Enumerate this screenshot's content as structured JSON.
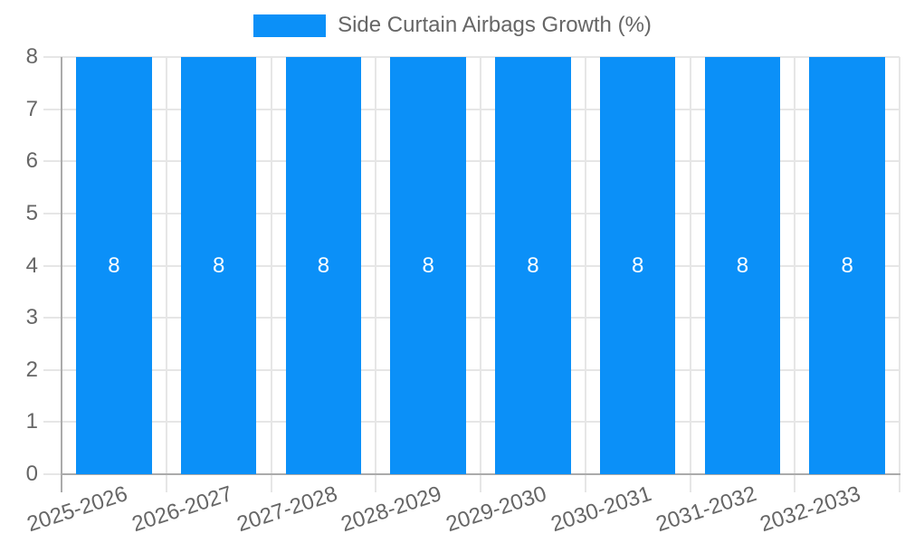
{
  "chart_data": {
    "type": "bar",
    "title": "",
    "legend": {
      "label": "Side Curtain Airbags Growth (%)",
      "position": "top"
    },
    "categories": [
      "2025-2026",
      "2026-2027",
      "2027-2028",
      "2028-2029",
      "2029-2030",
      "2030-2031",
      "2031-2032",
      "2032-2033"
    ],
    "values": [
      8,
      8,
      8,
      8,
      8,
      8,
      8,
      8
    ],
    "bar_labels": [
      "8",
      "8",
      "8",
      "8",
      "8",
      "8",
      "8",
      "8"
    ],
    "xlabel": "",
    "ylabel": "",
    "ylim": [
      0,
      8
    ],
    "yticks": [
      0,
      1,
      2,
      3,
      4,
      5,
      6,
      7,
      8
    ],
    "grid": true,
    "legend_position": "top",
    "x_label_rotation_deg": -18,
    "colors": {
      "bar": "#0b90f8",
      "bar_label": "#ffffff",
      "tick_text": "#666666",
      "grid_line": "#e6e6e6",
      "axis_line": "#ababab",
      "background": "#ffffff"
    }
  }
}
